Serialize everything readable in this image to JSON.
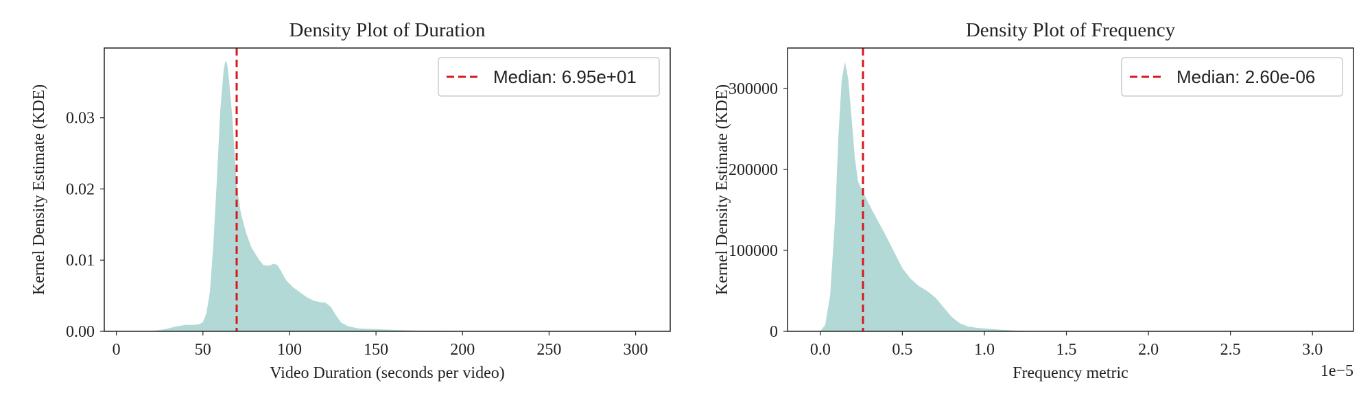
{
  "chart_data": [
    {
      "type": "area",
      "title": "Density Plot of Duration",
      "xlabel": "Video Duration (seconds per video)",
      "ylabel": "Kernel Density Estimate (KDE)",
      "xlim": [
        -7,
        320
      ],
      "ylim": [
        0,
        0.0398
      ],
      "x_ticks": [
        0,
        50,
        100,
        150,
        200,
        250,
        300
      ],
      "x_tick_labels": [
        "0",
        "50",
        "100",
        "150",
        "200",
        "250",
        "300"
      ],
      "y_ticks": [
        0,
        0.01,
        0.02,
        0.03
      ],
      "y_tick_labels": [
        "0.00",
        "0.01",
        "0.02",
        "0.03"
      ],
      "offset_text": "",
      "grid": false,
      "legend_position": "upper-right",
      "fill_color": "#b2d9d5",
      "median_line_color": "#d7191c",
      "median": {
        "value": 69.5,
        "label": "Median: 6.95e+01"
      },
      "series": [
        {
          "x": [
            20,
            28,
            35,
            40,
            45,
            48,
            50,
            52,
            54,
            56,
            58,
            60,
            62,
            63,
            64,
            65,
            67,
            69.5,
            72,
            75,
            78,
            82,
            85,
            88,
            91,
            93,
            95,
            98,
            102,
            106,
            110,
            114,
            118,
            121,
            124,
            127,
            130,
            134,
            140,
            150,
            160,
            175,
            200,
            230,
            260,
            300
          ],
          "y": [
            0,
            0.0003,
            0.0007,
            0.0009,
            0.0009,
            0.001,
            0.0013,
            0.0025,
            0.0055,
            0.012,
            0.021,
            0.031,
            0.0368,
            0.038,
            0.0376,
            0.0355,
            0.03,
            0.0205,
            0.0165,
            0.0138,
            0.0118,
            0.0102,
            0.0093,
            0.0092,
            0.0095,
            0.0093,
            0.0085,
            0.0072,
            0.0062,
            0.0055,
            0.0048,
            0.0043,
            0.0041,
            0.004,
            0.0034,
            0.0022,
            0.0012,
            0.0007,
            0.0004,
            0.0003,
            0.0002,
            0.0001,
            5e-05,
            2e-05,
            0,
            0
          ]
        }
      ]
    },
    {
      "type": "area",
      "title": "Density Plot of Frequency",
      "xlabel": "Frequency metric",
      "ylabel": "Kernel Density Estimate (KDE)",
      "xlim": [
        -2e-06,
        3.25e-05
      ],
      "ylim": [
        0,
        350000
      ],
      "x_ticks": [
        0,
        5e-06,
        1e-05,
        1.5e-05,
        2e-05,
        2.5e-05,
        3e-05
      ],
      "x_tick_labels": [
        "0.0",
        "0.5",
        "1.0",
        "1.5",
        "2.0",
        "2.5",
        "3.0"
      ],
      "y_ticks": [
        0,
        100000,
        200000,
        300000
      ],
      "y_tick_labels": [
        "0",
        "100000",
        "200000",
        "300000"
      ],
      "offset_text": "1e−5",
      "grid": false,
      "legend_position": "upper-right",
      "fill_color": "#b2d9d5",
      "median_line_color": "#d7191c",
      "median": {
        "value": 2.6e-06,
        "label": "Median: 2.60e-06"
      },
      "series": [
        {
          "x": [
            0,
            3e-07,
            6e-07,
            9e-07,
            1.1e-06,
            1.3e-06,
            1.5e-06,
            1.7e-06,
            1.9e-06,
            2.1e-06,
            2.3e-06,
            2.6e-06,
            2.9e-06,
            3.2e-06,
            3.6e-06,
            4e-06,
            4.5e-06,
            5e-06,
            5.5e-06,
            6e-06,
            6.5e-06,
            7e-06,
            7.5e-06,
            8e-06,
            8.5e-06,
            9e-06,
            9.5e-06,
            1e-05,
            1.1e-05,
            1.2e-05,
            1.3e-05,
            1.5e-05,
            2e-05,
            3.1e-05
          ],
          "y": [
            0,
            8000,
            45000,
            140000,
            240000,
            310000,
            333000,
            312000,
            265000,
            215000,
            185000,
            172000,
            160000,
            148000,
            133000,
            118000,
            98000,
            78000,
            65000,
            56000,
            50000,
            42000,
            30000,
            18000,
            10000,
            6000,
            4500,
            3500,
            2000,
            800,
            300,
            100,
            0,
            0
          ]
        }
      ]
    }
  ]
}
